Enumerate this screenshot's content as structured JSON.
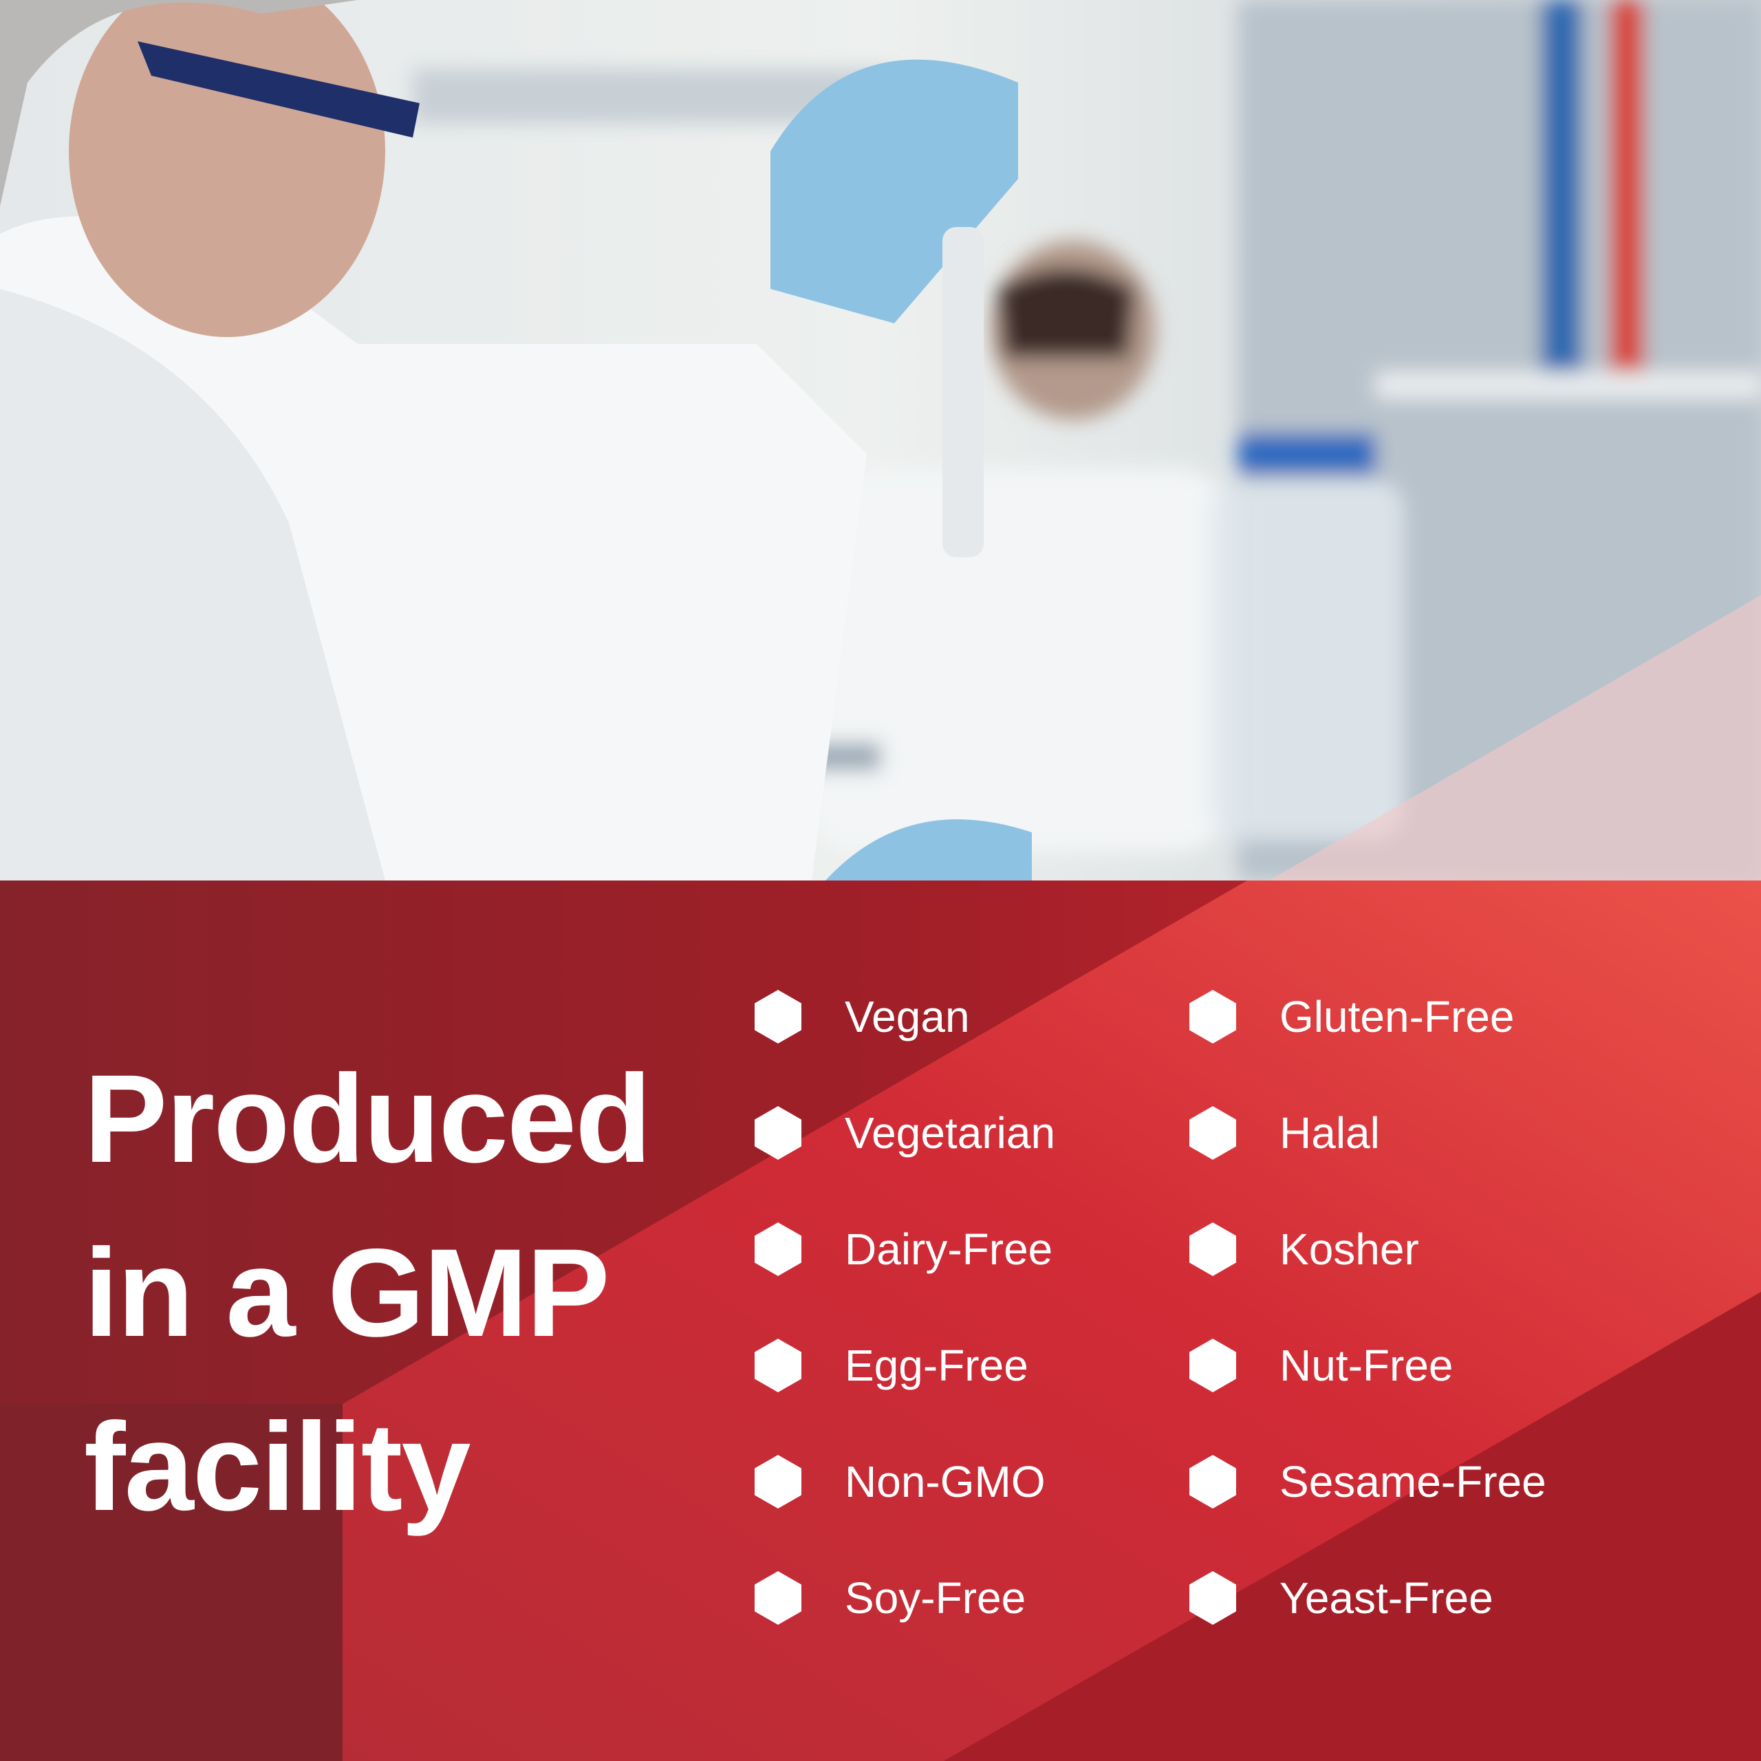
{
  "headline": {
    "lines": [
      "Produced",
      "in a GMP",
      "facility"
    ]
  },
  "features": {
    "left": [
      "Vegan",
      "Vegetarian",
      "Dairy-Free",
      "Egg-Free",
      "Non-GMO",
      "Soy-Free"
    ],
    "right": [
      "Gluten-Free",
      "Halal",
      "Kosher",
      "Nut-Free",
      "Sesame-Free",
      "Yeast-Free"
    ]
  },
  "bullet_icon": "hexagon-icon",
  "colors": {
    "panel_dark": "#7f2229",
    "panel_mid": "#c72a33",
    "panel_light": "#e9504a",
    "text": "#ffffff"
  }
}
